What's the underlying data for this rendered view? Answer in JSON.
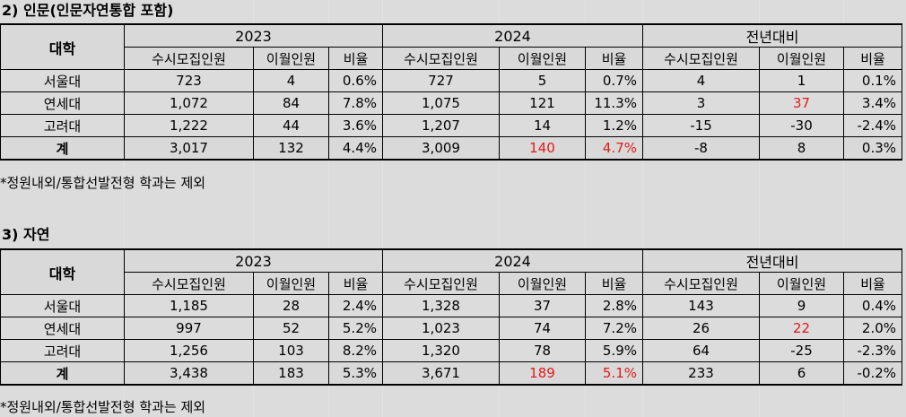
{
  "sections": [
    {
      "title": "2) 인문(인문자연통합 포함)",
      "note": "*정원내외/통합선발전형 학과는 제외",
      "header": {
        "univ": "대학",
        "groups": [
          "2023",
          "2024",
          "전년대비"
        ],
        "subs": [
          "수시모집인원",
          "이월인원",
          "비율",
          "수시모집인원",
          "이월인원",
          "비율",
          "수시모집인원",
          "이월인원",
          "비율"
        ]
      },
      "rows": [
        {
          "univ": "서울대",
          "cells": [
            "723",
            "4",
            "0.6%",
            "727",
            "5",
            "0.7%",
            "4",
            "1",
            "0.1%"
          ]
        },
        {
          "univ": "연세대",
          "cells": [
            "1,072",
            "84",
            "7.8%",
            "1,075",
            "121",
            "11.3%",
            "3",
            "37",
            "3.4%"
          ]
        },
        {
          "univ": "고려대",
          "cells": [
            "1,222",
            "44",
            "3.6%",
            "1,207",
            "14",
            "1.2%",
            "-15",
            "-30",
            "-2.4%"
          ]
        }
      ],
      "total": {
        "univ": "계",
        "cells": [
          "3,017",
          "132",
          "4.4%",
          "3,009",
          "140",
          "4.7%",
          "-8",
          "8",
          "0.3%"
        ]
      }
    },
    {
      "title": "3) 자연",
      "note": "*정원내외/통합선발전형 학과는 제외",
      "header": {
        "univ": "대학",
        "groups": [
          "2023",
          "2024",
          "전년대비"
        ],
        "subs": [
          "수시모집인원",
          "이월인원",
          "비율",
          "수시모집인원",
          "이월인원",
          "비율",
          "수시모집인원",
          "이월인원",
          "비율"
        ]
      },
      "rows": [
        {
          "univ": "서울대",
          "cells": [
            "1,185",
            "28",
            "2.4%",
            "1,328",
            "37",
            "2.8%",
            "143",
            "9",
            "0.4%"
          ]
        },
        {
          "univ": "연세대",
          "cells": [
            "997",
            "52",
            "5.2%",
            "1,023",
            "74",
            "7.2%",
            "26",
            "22",
            "2.0%"
          ]
        },
        {
          "univ": "고려대",
          "cells": [
            "1,256",
            "103",
            "8.2%",
            "1,320",
            "78",
            "5.9%",
            "64",
            "-25",
            "-2.3%"
          ]
        }
      ],
      "total": {
        "univ": "계",
        "cells": [
          "3,438",
          "183",
          "5.3%",
          "3,671",
          "189",
          "5.1%",
          "233",
          "6",
          "-0.2%"
        ]
      }
    }
  ],
  "colors": {
    "header_fill": "#d9d9d9",
    "highlight": "#e21b1b",
    "border": "#000000"
  }
}
